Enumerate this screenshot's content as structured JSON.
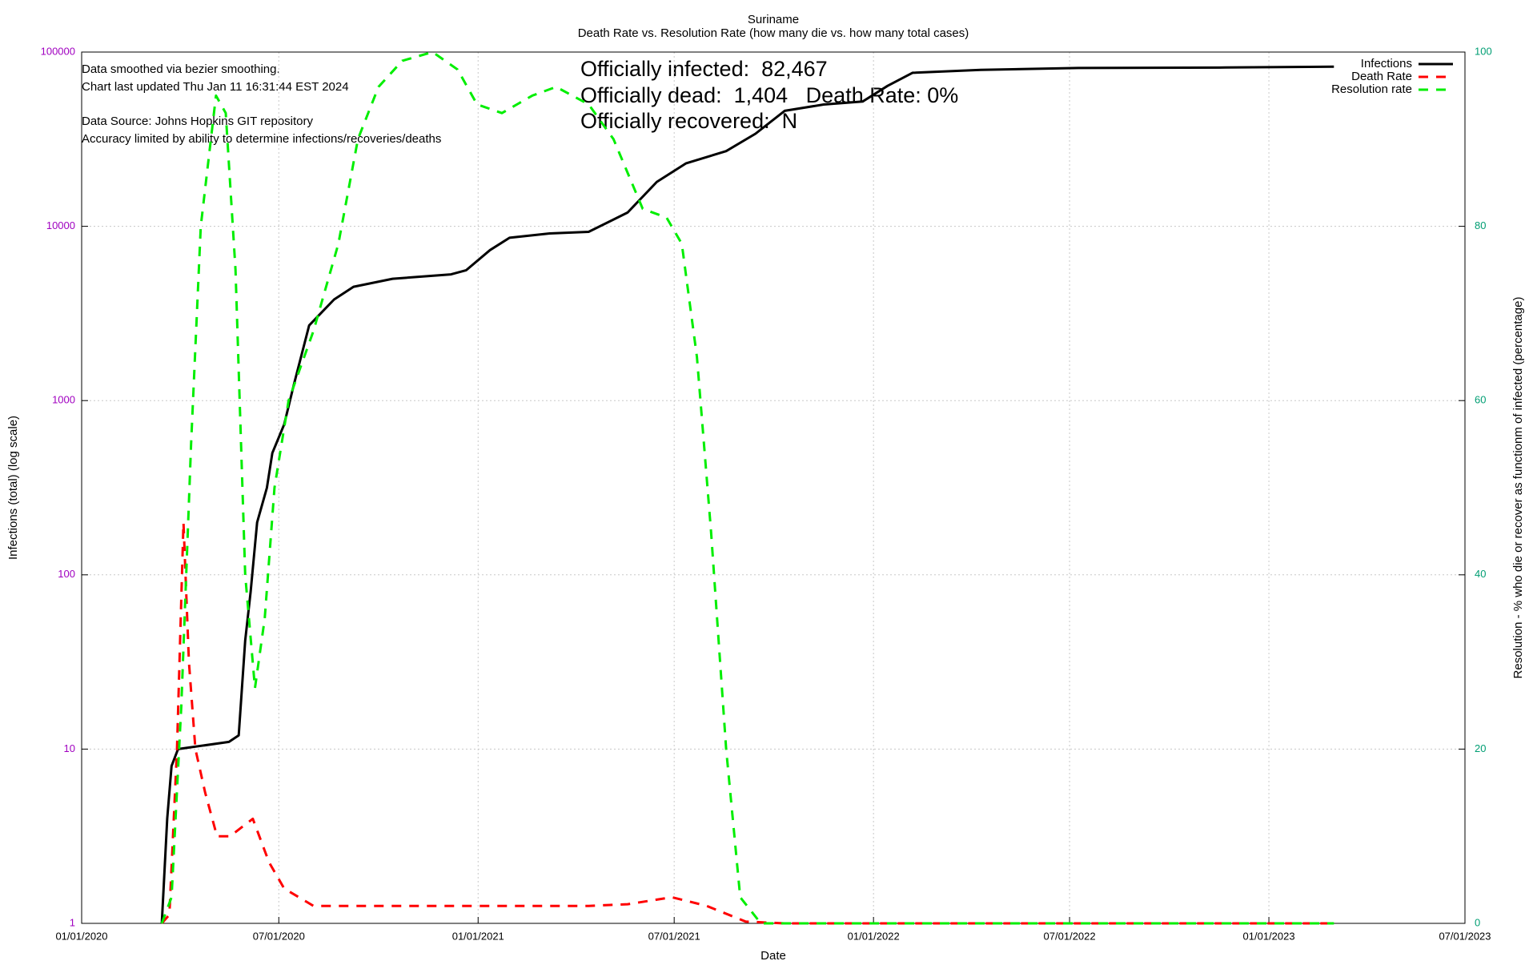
{
  "chart_data": {
    "type": "line",
    "title": "Suriname",
    "subtitle": "Death Rate vs. Resolution Rate (how many die vs. how many total cases)",
    "x_label": "Date",
    "y_label": "Infections (total) (log scale)",
    "y2_label": "Resolution - % who die or recover as functionm of infected (percentage)",
    "annotations": [
      "Data smoothed via bezier smoothing.",
      "Chart last updated Thu Jan 11 16:31:44 EST 2024",
      "Data Source: Johns Hopkins GIT repository",
      "Accuracy limited by ability to determine infections/recoveries/deaths"
    ],
    "stats": [
      "Officially infected:  82,467",
      "Officially dead:  1,404   Death Rate: 0%",
      "Officially recovered:  N"
    ],
    "xlim": [
      "2020-01-01",
      "2023-07-01"
    ],
    "xticks": [
      {
        "value": "2020-01-01",
        "label": "01/01/2020"
      },
      {
        "value": "2020-07-01",
        "label": "07/01/2020"
      },
      {
        "value": "2021-01-01",
        "label": "01/01/2021"
      },
      {
        "value": "2021-07-01",
        "label": "07/01/2021"
      },
      {
        "value": "2022-01-01",
        "label": "01/01/2022"
      },
      {
        "value": "2022-07-01",
        "label": "07/01/2022"
      },
      {
        "value": "2023-01-01",
        "label": "01/01/2023"
      },
      {
        "value": "2023-07-01",
        "label": "07/01/2023"
      }
    ],
    "ylim": [
      1,
      100000
    ],
    "yticks": [
      1,
      10,
      100,
      1000,
      10000,
      100000
    ],
    "log_y": true,
    "y2lim": [
      0,
      100
    ],
    "y2ticks": [
      0,
      20,
      40,
      60,
      80,
      100
    ],
    "grid": true,
    "legend": "top-right",
    "y_tick_color": "#a000c0",
    "y2_tick_color": "#009e73",
    "series": [
      {
        "name": "Infections",
        "color": "#000000",
        "dashed": false,
        "x": [
          "2020-03-15",
          "2020-03-20",
          "2020-03-24",
          "2020-03-30",
          "2020-05-16",
          "2020-05-25",
          "2020-05-31",
          "2020-06-05",
          "2020-06-11",
          "2020-06-20",
          "2020-06-25",
          "2020-07-06",
          "2020-07-15",
          "2020-07-29",
          "2020-08-21",
          "2020-09-08",
          "2020-10-14",
          "2020-12-07",
          "2020-12-21",
          "2021-01-12",
          "2021-01-30",
          "2021-03-08",
          "2021-04-13",
          "2021-05-19",
          "2021-06-15",
          "2021-07-12",
          "2021-08-18",
          "2021-09-14",
          "2021-10-11",
          "2021-11-16",
          "2021-12-22",
          "2022-01-14",
          "2022-02-06",
          "2022-04-10",
          "2022-07-09",
          "2022-11-22",
          "2023-03-02"
        ],
        "values": [
          1,
          4,
          8,
          10,
          11,
          12,
          42,
          80,
          200,
          316,
          500,
          730,
          1240,
          2700,
          3800,
          4500,
          5000,
          5300,
          5600,
          7300,
          8600,
          9100,
          9300,
          12000,
          18000,
          23000,
          27000,
          34000,
          46000,
          50000,
          52000,
          64000,
          76000,
          79000,
          81000,
          81500,
          82467
        ]
      },
      {
        "name": "Death Rate",
        "color": "#ff0000",
        "dashed": true,
        "axis": "y2",
        "x": [
          "2020-03-15",
          "2020-03-22",
          "2020-03-29",
          "2020-04-04",
          "2020-04-09",
          "2020-04-15",
          "2020-04-24",
          "2020-05-05",
          "2020-05-17",
          "2020-06-07",
          "2020-06-22",
          "2020-07-06",
          "2020-08-02",
          "2020-08-25",
          "2021-04-13",
          "2021-05-19",
          "2021-06-29",
          "2021-07-31",
          "2021-09-05",
          "2021-10-11",
          "2023-03-02"
        ],
        "values": [
          0,
          1,
          20,
          46,
          30,
          20,
          15,
          10,
          10,
          12,
          7,
          4,
          2,
          2,
          2,
          2.2,
          3,
          2,
          0.2,
          0,
          0
        ]
      },
      {
        "name": "Resolution rate",
        "color": "#00ee00",
        "dashed": true,
        "axis": "y2",
        "x": [
          "2020-03-15",
          "2020-03-24",
          "2020-04-02",
          "2020-04-11",
          "2020-04-20",
          "2020-05-04",
          "2020-05-13",
          "2020-05-22",
          "2020-05-31",
          "2020-06-09",
          "2020-06-18",
          "2020-06-27",
          "2020-07-10",
          "2020-08-02",
          "2020-08-25",
          "2020-09-12",
          "2020-10-01",
          "2020-10-23",
          "2020-11-20",
          "2020-12-13",
          "2020-12-31",
          "2021-01-23",
          "2021-02-20",
          "2021-03-14",
          "2021-04-13",
          "2021-05-06",
          "2021-06-02",
          "2021-06-24",
          "2021-07-08",
          "2021-07-22",
          "2021-08-04",
          "2021-08-18",
          "2021-08-31",
          "2021-09-19",
          "2023-03-02"
        ],
        "values": [
          0,
          3,
          25,
          55,
          80,
          95,
          93,
          75,
          40,
          27,
          35,
          50,
          60,
          68,
          78,
          90,
          96,
          99,
          100,
          98,
          94,
          93,
          95,
          96,
          94,
          90,
          82,
          81,
          78,
          65,
          45,
          20,
          3,
          0,
          0
        ]
      }
    ]
  }
}
